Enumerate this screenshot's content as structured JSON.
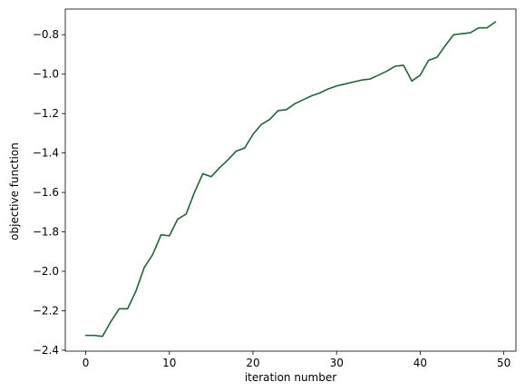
{
  "chart_data": {
    "type": "line",
    "title": "",
    "xlabel": "iteration number",
    "ylabel": "objective function",
    "xlim": [
      -2.45,
      51.45
    ],
    "ylim": [
      -2.405,
      -0.67
    ],
    "xticks": [
      0,
      10,
      20,
      30,
      40,
      50
    ],
    "xtick_labels": [
      "0",
      "10",
      "20",
      "30",
      "40",
      "50"
    ],
    "yticks": [
      -2.4,
      -2.2,
      -2.0,
      -1.8,
      -1.6,
      -1.4,
      -1.2,
      -1.0,
      -0.8
    ],
    "ytick_labels": [
      "−2.4",
      "−2.2",
      "−2.0",
      "−1.8",
      "−1.6",
      "−1.4",
      "−1.2",
      "−1.0",
      "−0.8"
    ],
    "grid": false,
    "legend": "none",
    "series": [
      {
        "color": "#1f6535",
        "x": [
          0,
          1,
          2,
          3,
          4,
          5,
          6,
          7,
          8,
          9,
          10,
          11,
          12,
          13,
          14,
          15,
          16,
          17,
          18,
          19,
          20,
          21,
          22,
          23,
          24,
          25,
          26,
          27,
          28,
          29,
          30,
          31,
          32,
          33,
          34,
          35,
          36,
          37,
          38,
          39,
          40,
          41,
          42,
          43,
          44,
          45,
          46,
          47,
          48,
          49
        ],
        "y": [
          -2.325,
          -2.325,
          -2.33,
          -2.255,
          -2.19,
          -2.19,
          -2.1,
          -1.98,
          -1.915,
          -1.815,
          -1.82,
          -1.735,
          -1.71,
          -1.6,
          -1.505,
          -1.52,
          -1.475,
          -1.435,
          -1.39,
          -1.375,
          -1.305,
          -1.255,
          -1.23,
          -1.185,
          -1.18,
          -1.15,
          -1.13,
          -1.11,
          -1.095,
          -1.075,
          -1.06,
          -1.05,
          -1.04,
          -1.03,
          -1.025,
          -1.005,
          -0.985,
          -0.96,
          -0.955,
          -1.035,
          -1.005,
          -0.93,
          -0.915,
          -0.855,
          -0.8,
          -0.795,
          -0.79,
          -0.765,
          -0.765,
          -0.735
        ]
      }
    ]
  }
}
